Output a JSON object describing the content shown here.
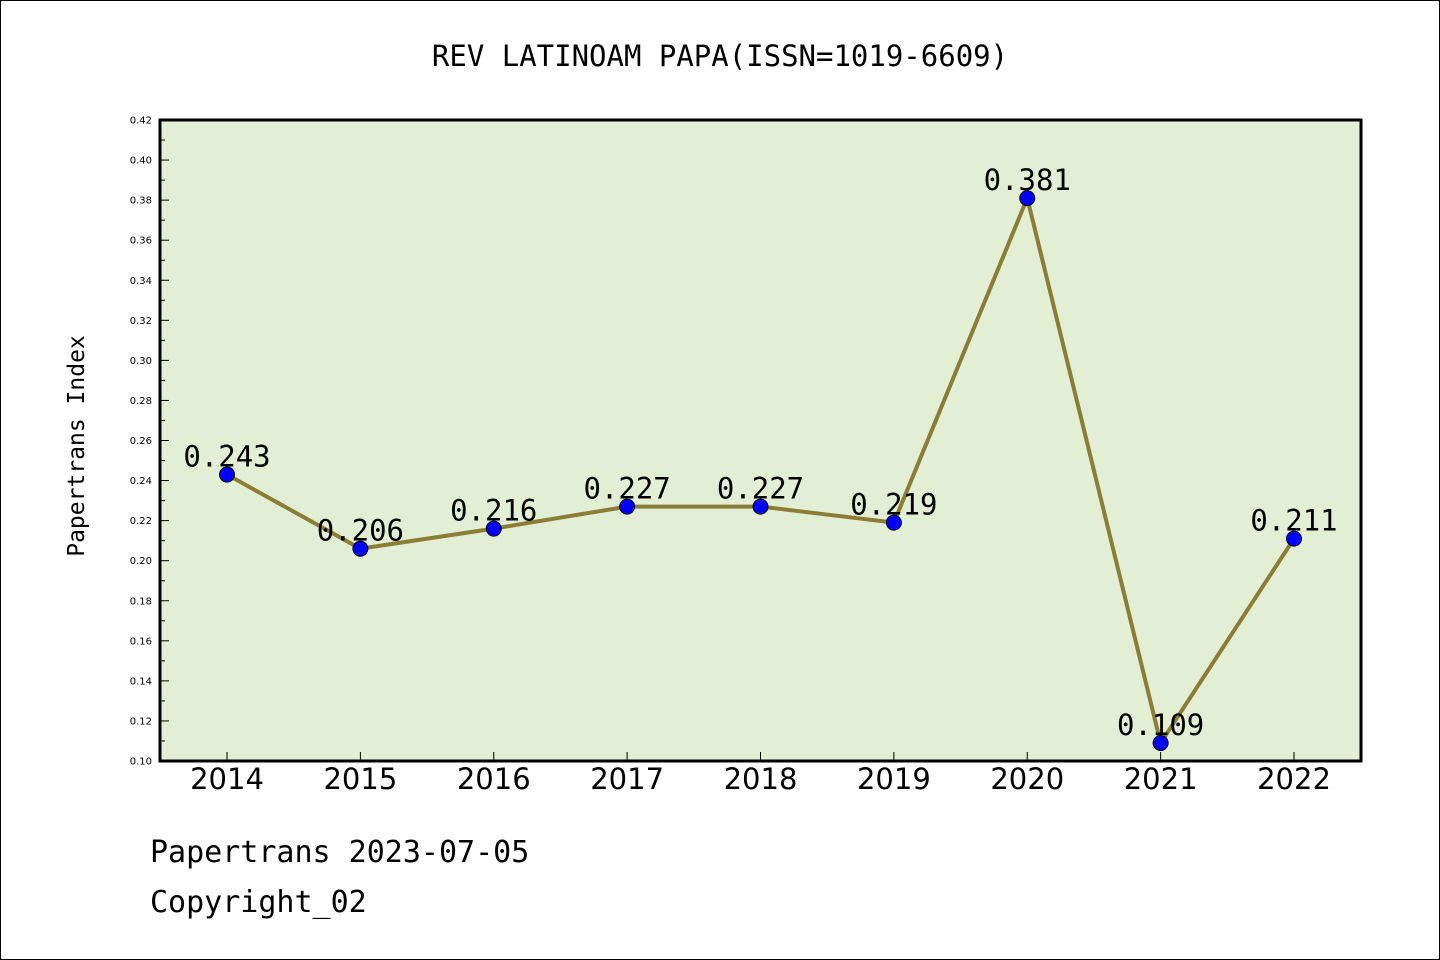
{
  "chart_data": {
    "type": "line",
    "title": "REV LATINOAM PAPA(ISSN=1019-6609)",
    "xlabel": "",
    "ylabel": "Papertrans Index",
    "categories": [
      "2014",
      "2015",
      "2016",
      "2017",
      "2018",
      "2019",
      "2020",
      "2021",
      "2022"
    ],
    "values": [
      0.243,
      0.206,
      0.216,
      0.227,
      0.227,
      0.219,
      0.381,
      0.109,
      0.211
    ],
    "data_labels": [
      "0.243",
      "0.206",
      "0.216",
      "0.227",
      "0.227",
      "0.219",
      "0.381",
      "0.109",
      "0.211"
    ],
    "ylim": [
      0.1,
      0.42
    ],
    "yticks": [
      "0.10",
      "0.12",
      "0.14",
      "0.16",
      "0.18",
      "0.20",
      "0.22",
      "0.24",
      "0.26",
      "0.28",
      "0.30",
      "0.32",
      "0.34",
      "0.36",
      "0.38",
      "0.40",
      "0.42"
    ],
    "grid": false,
    "legend": "none",
    "colors": {
      "plot_background": "#e2efd4",
      "line": "#8b7d36",
      "marker": "#0000ff",
      "axis": "#000000"
    }
  },
  "footer": {
    "line1": "Papertrans 2023-07-05",
    "line2": "Copyright_02"
  }
}
